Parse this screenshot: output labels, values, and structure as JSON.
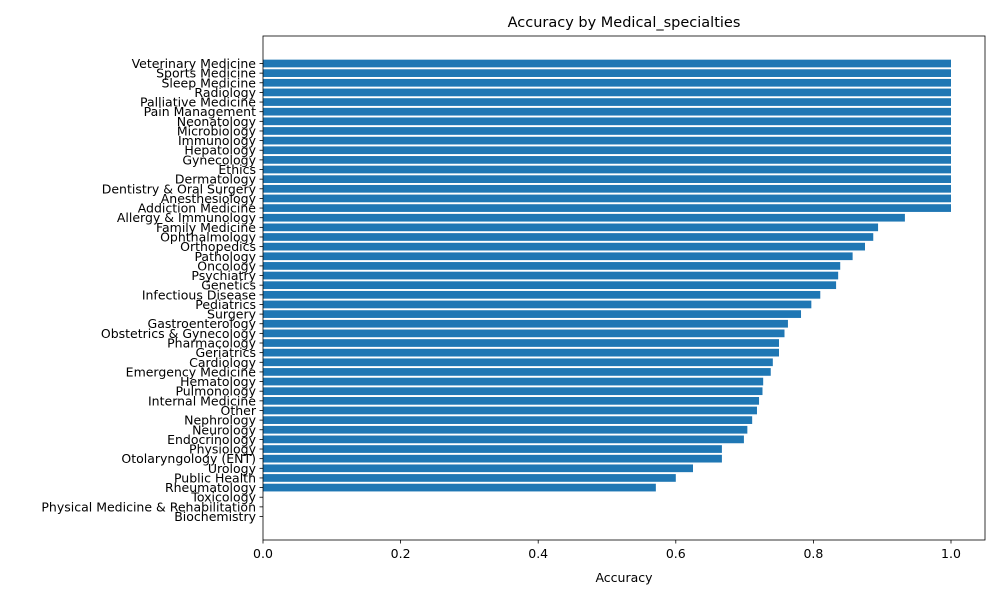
{
  "chart_data": {
    "type": "bar",
    "orientation": "horizontal",
    "title": "Accuracy by Medical_specialties",
    "xlabel": "Accuracy",
    "ylabel": "",
    "xlim": [
      0,
      1.05
    ],
    "xticks": [
      0.0,
      0.2,
      0.4,
      0.6,
      0.8,
      1.0
    ],
    "xtick_labels": [
      "0.0",
      "0.2",
      "0.4",
      "0.6",
      "0.8",
      "1.0"
    ],
    "grid": false,
    "bar_color": "#1f77b4",
    "categories": [
      "Veterinary Medicine",
      "Sports Medicine",
      "Sleep Medicine",
      "Radiology",
      "Palliative Medicine",
      "Pain Management",
      "Neonatology",
      "Microbiology",
      "Immunology",
      "Hepatology",
      "Gynecology",
      "Ethics",
      "Dermatology",
      "Dentistry & Oral Surgery",
      "Anesthesiology",
      "Addiction Medicine",
      "Allergy & Immunology",
      "Family Medicine",
      "Ophthalmology",
      "Orthopedics",
      "Pathology",
      "Oncology",
      "Psychiatry",
      "Genetics",
      "Infectious Disease",
      "Pediatrics",
      "Surgery",
      "Gastroenterology",
      "Obstetrics & Gynecology",
      "Pharmacology",
      "Geriatrics",
      "Cardiology",
      "Emergency Medicine",
      "Hematology",
      "Pulmonology",
      "Internal Medicine",
      "Other",
      "Nephrology",
      "Neurology",
      "Endocrinology",
      "Physiology",
      "Otolaryngology (ENT)",
      "Urology",
      "Public Health",
      "Rheumatology",
      "Toxicology",
      "Physical Medicine & Rehabilitation",
      "Biochemistry"
    ],
    "values": [
      1.0,
      1.0,
      1.0,
      1.0,
      1.0,
      1.0,
      1.0,
      1.0,
      1.0,
      1.0,
      1.0,
      1.0,
      1.0,
      1.0,
      1.0,
      1.0,
      0.933,
      0.894,
      0.887,
      0.875,
      0.857,
      0.839,
      0.836,
      0.833,
      0.81,
      0.797,
      0.782,
      0.763,
      0.758,
      0.75,
      0.75,
      0.741,
      0.738,
      0.727,
      0.726,
      0.721,
      0.718,
      0.711,
      0.704,
      0.699,
      0.667,
      0.667,
      0.625,
      0.6,
      0.571,
      0.0,
      0.0,
      0.0
    ]
  }
}
